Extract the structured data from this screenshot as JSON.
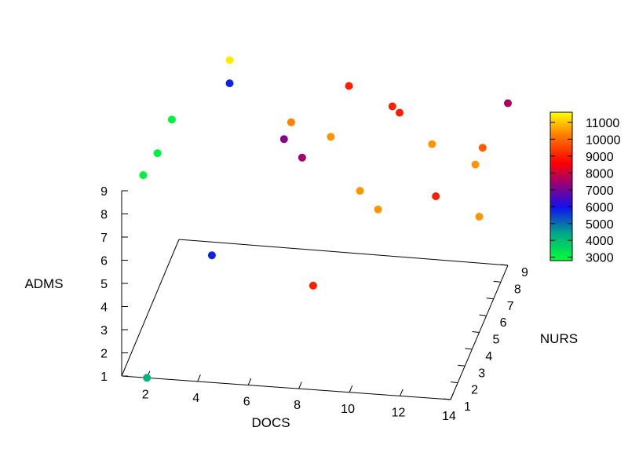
{
  "chart_data": {
    "type": "scatter3d",
    "xlabel": "DOCS",
    "ylabel": "NURS",
    "zlabel": "ADMS",
    "xticks": [
      "2",
      "4",
      "6",
      "8",
      "10",
      "12",
      "14"
    ],
    "yticks": [
      "1",
      "2",
      "3",
      "4",
      "5",
      "6",
      "7",
      "8",
      "9"
    ],
    "zticks": [
      "1",
      "2",
      "3",
      "4",
      "5",
      "6",
      "7",
      "8",
      "9"
    ],
    "xlim": [
      1,
      14
    ],
    "ylim": [
      1,
      9
    ],
    "zlim": [
      1,
      9
    ],
    "colorbar": {
      "ticks": [
        "3000",
        "4000",
        "5000",
        "6000",
        "7000",
        "8000",
        "9000",
        "10000",
        "11000"
      ],
      "range": [
        2800,
        11600
      ]
    },
    "points": [
      {
        "x": 2,
        "y": 1,
        "z": 1,
        "c": 4200
      },
      {
        "x": 1,
        "y": 4,
        "z": 7.5,
        "c": 3100
      },
      {
        "x": 1,
        "y": 6,
        "z": 7,
        "c": 3100
      },
      {
        "x": 1,
        "y": 8,
        "z": 7,
        "c": 3100
      },
      {
        "x": 3,
        "y": 9,
        "z": 8,
        "c": 5800
      },
      {
        "x": 4,
        "y": 3,
        "z": 5,
        "c": 5800
      },
      {
        "x": 3,
        "y": 9,
        "z": 9,
        "c": 11400
      },
      {
        "x": 6,
        "y": 7,
        "z": 8,
        "c": 10300
      },
      {
        "x": 6,
        "y": 6,
        "z": 8,
        "c": 7200
      },
      {
        "x": 7,
        "y": 5,
        "z": 8,
        "c": 7500
      },
      {
        "x": 8,
        "y": 8,
        "z": 9,
        "c": 9000
      },
      {
        "x": 10,
        "y": 7,
        "z": 9,
        "c": 9000
      },
      {
        "x": 7,
        "y": 9,
        "z": 6,
        "c": 10500
      },
      {
        "x": 8,
        "y": 3,
        "z": 4,
        "c": 9000
      },
      {
        "x": 9,
        "y": 6,
        "z": 6,
        "c": 10500
      },
      {
        "x": 10,
        "y": 5,
        "z": 6,
        "c": 10500
      },
      {
        "x": 10,
        "y": 8,
        "z": 8,
        "c": 9000
      },
      {
        "x": 11,
        "y": 9,
        "z": 6,
        "c": 10500
      },
      {
        "x": 12,
        "y": 6,
        "z": 6,
        "c": 9000
      },
      {
        "x": 14,
        "y": 5,
        "z": 6,
        "c": 10500
      },
      {
        "x": 13,
        "y": 8,
        "z": 6,
        "c": 10500
      },
      {
        "x": 13,
        "y": 9,
        "z": 6,
        "c": 9800
      },
      {
        "x": 14,
        "y": 9,
        "z": 8,
        "c": 7600
      }
    ]
  }
}
